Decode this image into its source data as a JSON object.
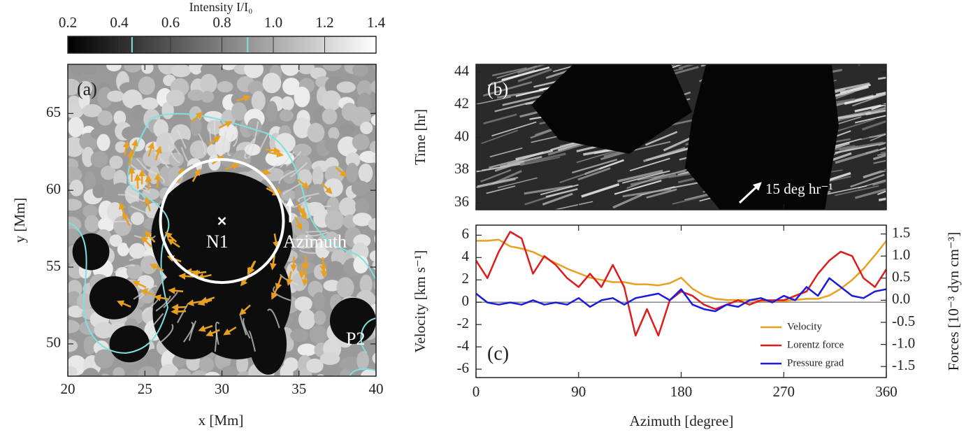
{
  "chart_data": [
    {
      "type": "image",
      "colorbar": {
        "label": "Intensity I/I₀",
        "lim": [
          0.2,
          1.4
        ],
        "ticks": [
          0.2,
          0.4,
          0.6,
          0.8,
          {
            "value": 1,
            "label": "1.0"
          },
          1.2,
          1.4
        ],
        "contour_levels": [
          0.45,
          0.9
        ],
        "contour_color": "#7fe0e0"
      },
      "xlabel": "x [Mm]",
      "ylabel": "y [Mm]",
      "xlim": [
        20,
        40
      ],
      "ylim": [
        47.9,
        68.2
      ],
      "xticks": [
        20,
        25,
        30,
        35,
        40
      ],
      "yticks": [
        50,
        55,
        60,
        65
      ],
      "panel_label": "(a)",
      "annotations": [
        "N1",
        "Azimuth",
        "P2"
      ]
    },
    {
      "type": "image",
      "ylabel": "Time [hr]",
      "xlim": [
        0,
        360
      ],
      "ylim": [
        35.57,
        44.47
      ],
      "yticks": [
        36,
        38,
        40,
        42,
        44
      ],
      "panel_label": "(b)",
      "annotations": [
        "15 deg hr⁻¹"
      ]
    },
    {
      "type": "line",
      "xlabel": "Azimuth [degree]",
      "ylabel": "Velocity [km s⁻¹]",
      "y2label": "Forces [10⁻³ dyn cm⁻³]",
      "panel_label": "(c)",
      "legend": "lower right",
      "x": [
        0,
        10,
        20,
        30,
        40,
        50,
        60,
        70,
        80,
        90,
        100,
        110,
        120,
        130,
        140,
        150,
        160,
        170,
        180,
        190,
        200,
        210,
        220,
        230,
        240,
        250,
        260,
        270,
        280,
        290,
        300,
        310,
        320,
        330,
        340,
        350,
        360
      ],
      "xlim": [
        0,
        360
      ],
      "xticks": [
        0,
        90,
        180,
        270,
        360
      ],
      "ylim": [
        -6.75,
        6.9
      ],
      "yticks": [
        -6,
        -4,
        -2,
        0,
        2,
        4,
        6
      ],
      "y2lim": [
        -1.75,
        1.7
      ],
      "y2ticks": [
        -1.5,
        {
          "value": -1,
          "label": "-1.0"
        },
        -0.5,
        {
          "value": 0,
          "label": "0.0"
        },
        0.5,
        {
          "value": 1,
          "label": "1.0"
        },
        1.5
      ],
      "zero_line": true,
      "series": [
        {
          "name": "Velocity",
          "color": "#e8a020",
          "values": [
            5.5,
            5.5,
            5.6,
            5.0,
            4.8,
            4.5,
            4.0,
            3.5,
            3.0,
            2.6,
            2.2,
            2.0,
            1.8,
            1.8,
            1.6,
            1.6,
            1.5,
            1.7,
            2.2,
            1.2,
            0.6,
            0.3,
            0.2,
            0.2,
            0.2,
            0.1,
            0.1,
            0.1,
            0.2,
            0.3,
            0.3,
            0.6,
            1.2,
            2.0,
            3.0,
            4.2,
            5.5
          ]
        },
        {
          "name": "Lorentz force",
          "color": "#dd1c1c",
          "axis": "y2",
          "values": [
            0.9,
            0.5,
            1.1,
            1.55,
            1.4,
            0.6,
            1.0,
            0.8,
            0.5,
            0.3,
            0.6,
            0.3,
            0.8,
            0.3,
            -0.8,
            -0.2,
            -0.8,
            0.0,
            0.2,
            0.1,
            -0.1,
            -0.2,
            -0.1,
            0.0,
            -0.1,
            0.0,
            0.0,
            0.0,
            0.1,
            0.2,
            0.6,
            0.9,
            1.1,
            1.0,
            0.5,
            0.3,
            0.7
          ]
        },
        {
          "name": "Pressure grad",
          "color": "#1a1ae0",
          "axis": "y2",
          "values": [
            0.15,
            -0.05,
            -0.1,
            -0.05,
            -0.1,
            0.0,
            -0.1,
            -0.05,
            -0.1,
            0.05,
            -0.15,
            0.0,
            0.05,
            -0.1,
            0.05,
            0.1,
            0.15,
            0.0,
            0.25,
            -0.1,
            -0.2,
            -0.25,
            -0.1,
            -0.15,
            0.0,
            0.05,
            -0.05,
            0.1,
            0.0,
            0.3,
            0.1,
            0.5,
            0.3,
            0.1,
            0.05,
            0.2,
            0.25
          ]
        }
      ]
    }
  ]
}
